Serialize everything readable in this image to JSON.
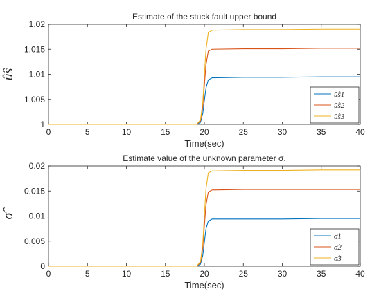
{
  "chart_data": [
    {
      "type": "line",
      "title": "Estimate of the stuck fault upper bound",
      "xlabel": "Time(sec)",
      "ylabel": "û̂s",
      "xlim": [
        0,
        40
      ],
      "ylim": [
        1,
        1.02
      ],
      "xticks": [
        0,
        5,
        10,
        15,
        20,
        25,
        30,
        35,
        40
      ],
      "xtick_labels": [
        "0",
        "5",
        "10",
        "15",
        "20",
        "25",
        "30",
        "35",
        "40"
      ],
      "yticks": [
        1,
        1.005,
        1.01,
        1.015,
        1.02
      ],
      "ytick_labels": [
        "1",
        "1.005",
        "1.01",
        "1.015",
        "1.02"
      ],
      "grid": false,
      "legend_position": "bottom-right",
      "series": [
        {
          "name": "û̂s1",
          "color": "#0072BD",
          "x": [
            0,
            19.0,
            19.5,
            19.8,
            20.0,
            20.2,
            20.5,
            21,
            25,
            30,
            35,
            40
          ],
          "y": [
            1,
            1,
            1.0004,
            1.0022,
            1.0048,
            1.0072,
            1.0089,
            1.0093,
            1.0094,
            1.0094,
            1.0095,
            1.0095
          ]
        },
        {
          "name": "û̂s2",
          "color": "#D95319",
          "x": [
            0,
            19.0,
            19.5,
            19.8,
            20.0,
            20.2,
            20.5,
            21,
            25,
            30,
            35,
            40
          ],
          "y": [
            1,
            1,
            1.0007,
            1.0036,
            1.0078,
            1.0118,
            1.0146,
            1.015,
            1.0151,
            1.0151,
            1.0152,
            1.0152
          ]
        },
        {
          "name": "û̂s3",
          "color": "#EDB120",
          "x": [
            0,
            19.0,
            19.5,
            19.8,
            20.0,
            20.2,
            20.5,
            21,
            25,
            30,
            35,
            40
          ],
          "y": [
            1,
            1,
            1.0009,
            1.0045,
            1.0098,
            1.0148,
            1.0183,
            1.0188,
            1.0189,
            1.0189,
            1.019,
            1.019
          ]
        }
      ]
    },
    {
      "type": "line",
      "title": "Estimate value of the unknown parameter σ.",
      "xlabel": "Time(sec)",
      "ylabel": "σ̂",
      "xlim": [
        0,
        40
      ],
      "ylim": [
        0,
        0.02
      ],
      "xticks": [
        0,
        5,
        10,
        15,
        20,
        25,
        30,
        35,
        40
      ],
      "xtick_labels": [
        "0",
        "5",
        "10",
        "15",
        "20",
        "25",
        "30",
        "35",
        "40"
      ],
      "yticks": [
        0,
        0.005,
        0.01,
        0.015,
        0.02
      ],
      "ytick_labels": [
        "0",
        "0.005",
        "0.01",
        "0.015",
        "0.02"
      ],
      "grid": false,
      "legend_position": "bottom-right",
      "series": [
        {
          "name": "σ̂1",
          "color": "#0072BD",
          "x": [
            0,
            19.0,
            19.5,
            19.8,
            20.0,
            20.2,
            20.5,
            21,
            25,
            30,
            35,
            40
          ],
          "y": [
            0,
            0,
            0.0004,
            0.0022,
            0.0048,
            0.0074,
            0.009,
            0.0094,
            0.0094,
            0.0094,
            0.0095,
            0.0095
          ]
        },
        {
          "name": "σ̂2",
          "color": "#D95319",
          "x": [
            0,
            19.0,
            19.5,
            19.8,
            20.0,
            20.2,
            20.5,
            21,
            25,
            30,
            35,
            40
          ],
          "y": [
            0,
            0,
            0.0007,
            0.0037,
            0.008,
            0.0121,
            0.0148,
            0.0152,
            0.0153,
            0.0153,
            0.0153,
            0.0153
          ]
        },
        {
          "name": "σ̂3",
          "color": "#EDB120",
          "x": [
            0,
            19.0,
            19.5,
            19.8,
            20.0,
            20.2,
            20.5,
            21,
            25,
            30,
            35,
            40
          ],
          "y": [
            0,
            0,
            0.0009,
            0.0047,
            0.0101,
            0.0153,
            0.0186,
            0.019,
            0.0191,
            0.0191,
            0.0192,
            0.0192
          ]
        }
      ]
    }
  ]
}
